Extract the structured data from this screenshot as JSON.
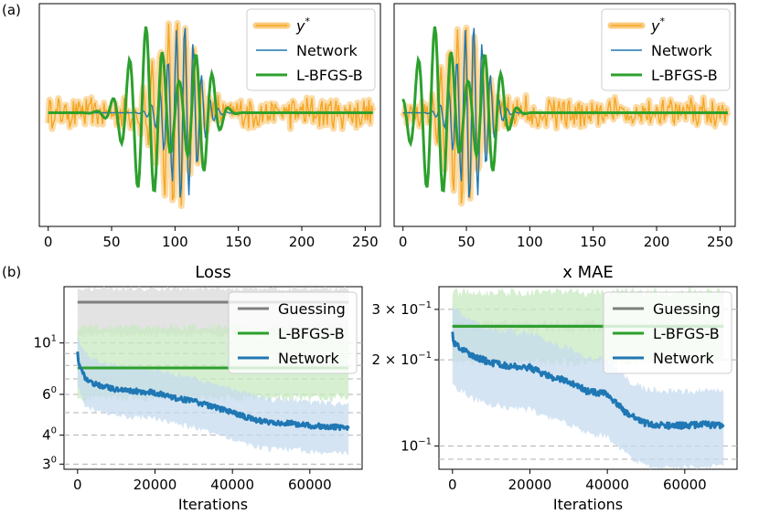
{
  "panel_labels": [
    "(a)",
    "(b)"
  ],
  "chart_data": [
    {
      "type": "line",
      "panel": "(a)",
      "x": [
        0,
        256
      ],
      "xlim": [
        -7,
        262
      ],
      "ylim": [
        -1.25,
        1.2
      ],
      "xticks": [
        0,
        50,
        100,
        150,
        200,
        250
      ],
      "xtick_labels": [
        "0",
        "50",
        "100",
        "150",
        "200",
        "250"
      ],
      "legend": "top-right",
      "burst_center": 100,
      "series": [
        {
          "name": "y*",
          "color": "#f5a623",
          "halo": "#f9cc80"
        },
        {
          "name": "Network",
          "color": "#1f77b4"
        },
        {
          "name": "L-BFGS-B",
          "color": "#2ca02c"
        }
      ]
    },
    {
      "type": "line",
      "panel": "(a)",
      "x": [
        0,
        256
      ],
      "xlim": [
        -7,
        262
      ],
      "ylim": [
        -1.25,
        1.2
      ],
      "xticks": [
        0,
        50,
        100,
        150,
        200,
        250
      ],
      "xtick_labels": [
        "0",
        "50",
        "100",
        "150",
        "200",
        "250"
      ],
      "legend": "top-right",
      "burst_center": 48,
      "series": [
        {
          "name": "y*",
          "color": "#f5a623",
          "halo": "#f9cc80"
        },
        {
          "name": "Network",
          "color": "#1f77b4"
        },
        {
          "name": "L-BFGS-B",
          "color": "#2ca02c"
        }
      ]
    },
    {
      "type": "line",
      "panel": "(b)",
      "title": "Loss",
      "xlabel": "Iterations",
      "xlim": [
        -3500,
        73500
      ],
      "yscale": "log",
      "ylim": [
        2.85,
        17.5
      ],
      "xticks": [
        0,
        20000,
        40000,
        60000
      ],
      "xtick_labels": [
        "0",
        "20000",
        "40000",
        "60000"
      ],
      "yticks": [
        3,
        4,
        6,
        10
      ],
      "ytick_labels": [
        {
          "base": "3",
          "exp": "0"
        },
        {
          "base": "4",
          "exp": "0"
        },
        {
          "base": "6",
          "exp": "0"
        },
        {
          "base": "10",
          "exp": "1"
        }
      ],
      "hlines_dashed": [
        3,
        4,
        5,
        6,
        7,
        8,
        9,
        10
      ],
      "legend": "top-right",
      "series": [
        {
          "name": "Guessing",
          "color": "#7f7f7f",
          "band_color": "#d9d9d9",
          "level": 15.0,
          "band": [
            11.0,
            17.0
          ]
        },
        {
          "name": "L-BFGS-B",
          "color": "#2ca02c",
          "band_color": "#c7e9c0",
          "level": 7.8,
          "band": [
            5.9,
            11.5
          ]
        },
        {
          "name": "Network",
          "color": "#1f77b4",
          "band_color": "#c6dbef",
          "x": [
            0,
            2000,
            5000,
            10000,
            15000,
            20000,
            25000,
            30000,
            35000,
            40000,
            45000,
            50000,
            55000,
            60000,
            65000,
            70000
          ],
          "values": [
            8.5,
            7.0,
            6.6,
            6.3,
            6.2,
            6.1,
            5.8,
            5.6,
            5.3,
            5.0,
            4.7,
            4.5,
            4.5,
            4.4,
            4.35,
            4.3
          ]
        }
      ]
    },
    {
      "type": "line",
      "panel": "(b)",
      "title": "x MAE",
      "xlabel": "Iterations",
      "xlim": [
        -3500,
        73500
      ],
      "yscale": "log",
      "ylim": [
        0.083,
        0.36
      ],
      "xticks": [
        0,
        20000,
        40000,
        60000
      ],
      "xtick_labels": [
        "0",
        "20000",
        "40000",
        "60000"
      ],
      "yticks": [
        0.1,
        0.2,
        0.3
      ],
      "ytick_labels": [
        {
          "base": "10",
          "exp": "−1"
        },
        {
          "base": "2 × 10",
          "exp": "−1"
        },
        {
          "base": "3 × 10",
          "exp": "−1"
        }
      ],
      "hlines_dashed": [
        0.09,
        0.1,
        0.2,
        0.3
      ],
      "legend": "top-right",
      "series": [
        {
          "name": "Guessing",
          "color": "#7f7f7f",
          "band_color": "#d9d9d9",
          "level": 0.262,
          "band": [
            0.258,
            0.266
          ]
        },
        {
          "name": "L-BFGS-B",
          "color": "#2ca02c",
          "band_color": "#c7e9c0",
          "level": 0.262,
          "band": [
            0.2,
            0.34
          ]
        },
        {
          "name": "Network",
          "color": "#1f77b4",
          "band_color": "#c6dbef",
          "x": [
            0,
            3000,
            6000,
            10000,
            15000,
            20000,
            25000,
            30000,
            35000,
            40000,
            45000,
            50000,
            55000,
            60000,
            65000,
            70000
          ],
          "values": [
            0.232,
            0.215,
            0.205,
            0.195,
            0.19,
            0.188,
            0.175,
            0.168,
            0.155,
            0.152,
            0.13,
            0.12,
            0.118,
            0.118,
            0.119,
            0.118
          ]
        }
      ]
    }
  ]
}
